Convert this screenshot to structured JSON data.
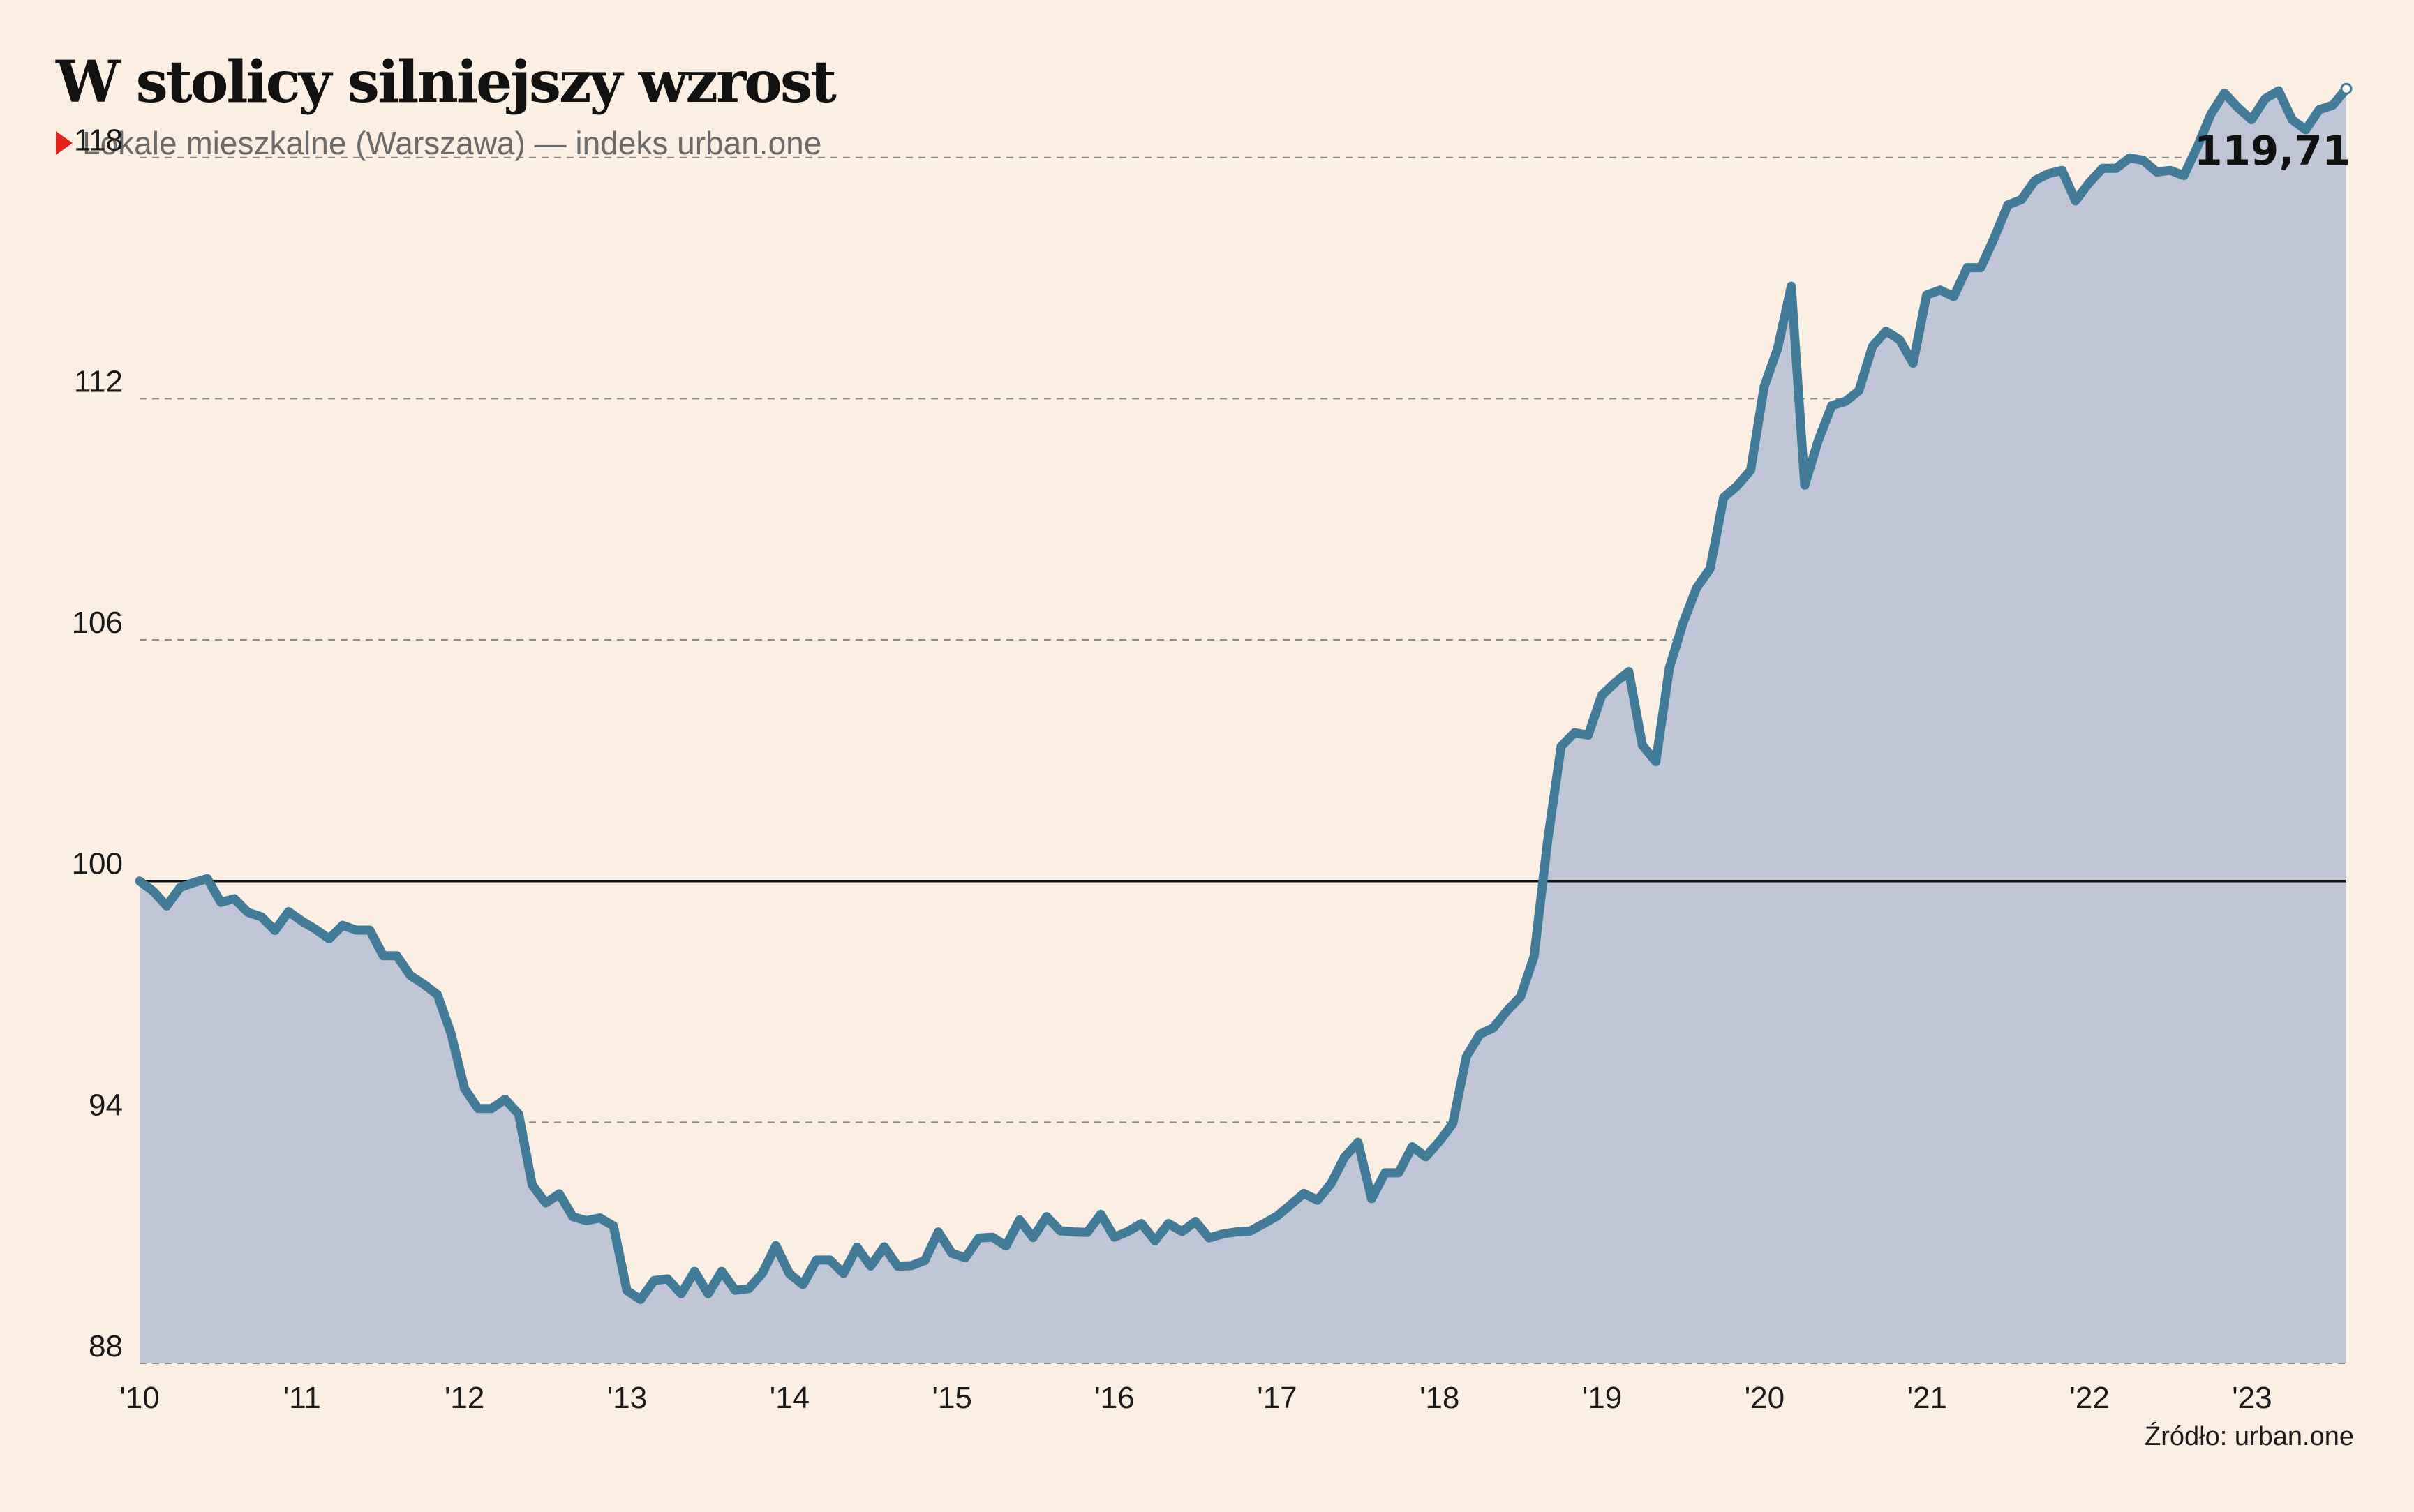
{
  "header": {
    "title": "W stolicy silniejszy wzrost",
    "subtitle": "Lokale mieszkalne (Warszawa) — indeks urban.one"
  },
  "footer": {
    "source": "Źródło: urban.one"
  },
  "colors": {
    "background": "#fbeee2",
    "area_fill": "#c1c6d7",
    "line": "#417b98",
    "baseline": "#111111",
    "grid": "#8a8a8a",
    "marker": "#e32119"
  },
  "chart_data": {
    "type": "area",
    "title": "W stolicy silniejszy wzrost",
    "subtitle": "Lokale mieszkalne (Warszawa) — indeks urban.one",
    "xlabel": "",
    "ylabel": "",
    "ylim": [
      88,
      120
    ],
    "yticks": [
      88,
      94,
      100,
      106,
      112,
      118
    ],
    "baseline": 100,
    "grid": "dashed horizontal",
    "xtick_labels": [
      "'10",
      "'11",
      "'12",
      "'13",
      "'14",
      "'15",
      "'16",
      "'17",
      "'18",
      "'19",
      "'20",
      "'21",
      "'22",
      "'23"
    ],
    "x_start_year": 2010,
    "x_end_year": 2023.58,
    "last_value_label": "119,71",
    "series": [
      {
        "values": [
          100.0,
          99.75,
          99.38,
          99.84,
          99.96,
          100.06,
          99.47,
          99.56,
          99.22,
          99.11,
          98.77,
          99.24,
          99.0,
          98.8,
          98.56,
          98.9,
          98.78,
          98.78,
          98.14,
          98.14,
          97.65,
          97.43,
          97.17,
          96.21,
          94.84,
          94.34,
          94.34,
          94.57,
          94.2,
          92.44,
          91.99,
          92.22,
          91.65,
          91.55,
          91.62,
          91.42,
          89.81,
          89.59,
          90.06,
          90.1,
          89.73,
          90.29,
          89.73,
          90.29,
          89.82,
          89.86,
          90.24,
          90.93,
          90.23,
          89.96,
          90.57,
          90.57,
          90.24,
          90.89,
          90.42,
          90.9,
          90.42,
          90.43,
          90.56,
          91.27,
          90.74,
          90.63,
          91.12,
          91.14,
          90.92,
          91.57,
          91.13,
          91.65,
          91.3,
          91.27,
          91.26,
          91.71,
          91.14,
          91.28,
          91.48,
          91.05,
          91.48,
          91.28,
          91.53,
          91.12,
          91.22,
          91.27,
          91.29,
          91.47,
          91.66,
          91.94,
          92.23,
          92.06,
          92.47,
          93.13,
          93.5,
          92.1,
          92.74,
          92.74,
          93.39,
          93.14,
          93.52,
          93.97,
          95.63,
          96.19,
          96.35,
          96.77,
          97.12,
          98.12,
          100.99,
          103.35,
          103.69,
          103.63,
          104.62,
          104.94,
          105.21,
          103.38,
          102.97,
          105.31,
          106.41,
          107.29,
          107.77,
          109.54,
          109.83,
          110.22,
          112.3,
          113.26,
          114.8,
          109.85,
          110.96,
          111.83,
          111.93,
          112.2,
          113.3,
          113.68,
          113.47,
          112.88,
          114.58,
          114.7,
          114.54,
          115.26,
          115.26,
          116.0,
          116.82,
          116.95,
          117.43,
          117.6,
          117.68,
          116.92,
          117.37,
          117.73,
          117.73,
          117.99,
          117.93,
          117.64,
          117.68,
          117.55,
          118.27,
          119.08,
          119.6,
          119.24,
          118.94,
          119.46,
          119.66,
          118.94,
          118.69,
          119.19,
          119.3,
          119.71
        ]
      }
    ]
  }
}
